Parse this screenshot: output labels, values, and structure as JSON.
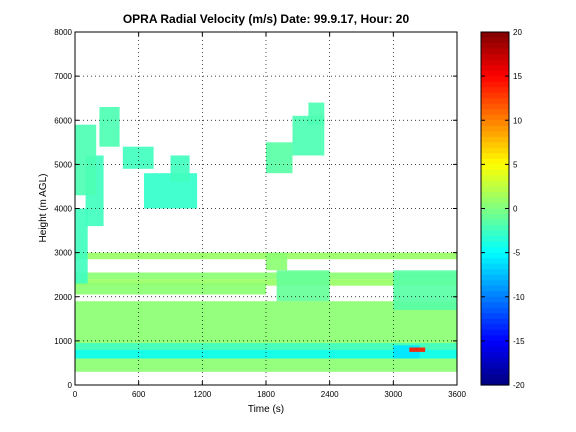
{
  "chart_data": {
    "type": "heatmap",
    "title": "OPRA Radial Velocity (m/s)  Date: 99.9.17, Hour: 20",
    "xlabel": "Time (s)",
    "ylabel": "Height (m AGL)",
    "xlim": [
      0,
      3600
    ],
    "ylim": [
      0,
      8000
    ],
    "x_ticks": [
      "0",
      "600",
      "1200",
      "1800",
      "2400",
      "3000",
      "3600"
    ],
    "y_ticks": [
      "0",
      "1000",
      "2000",
      "3000",
      "4000",
      "5000",
      "6000",
      "7000",
      "8000"
    ],
    "grid": true,
    "colorbar": {
      "range": [
        -20,
        20
      ],
      "ticks": [
        "20",
        "15",
        "10",
        "5",
        "0",
        "-5",
        "-10",
        "-15",
        "-20"
      ],
      "colormap": "jet"
    },
    "regions": [
      {
        "t": [
          0,
          3600
        ],
        "h": [
          300,
          1900
        ],
        "v": 0.5
      },
      {
        "t": [
          0,
          3600
        ],
        "h": [
          600,
          800
        ],
        "v": -4.5
      },
      {
        "t": [
          0,
          3600
        ],
        "h": [
          800,
          950
        ],
        "v": -2.5
      },
      {
        "t": [
          3000,
          3250
        ],
        "h": [
          600,
          900
        ],
        "v": -6
      },
      {
        "t": [
          3150,
          3300
        ],
        "h": [
          750,
          850
        ],
        "v": 14
      },
      {
        "t": [
          0,
          3600
        ],
        "h": [
          2250,
          2400
        ],
        "v": 1
      },
      {
        "t": [
          0,
          1800
        ],
        "h": [
          2050,
          2300
        ],
        "v": 0.5
      },
      {
        "t": [
          0,
          3600
        ],
        "h": [
          2400,
          2550
        ],
        "v": 0.5
      },
      {
        "t": [
          1900,
          2400
        ],
        "h": [
          1900,
          2600
        ],
        "v": -1
      },
      {
        "t": [
          3000,
          3600
        ],
        "h": [
          1700,
          2600
        ],
        "v": -1.5
      },
      {
        "t": [
          0,
          3600
        ],
        "h": [
          2850,
          3000
        ],
        "v": 1
      },
      {
        "t": [
          1800,
          2000
        ],
        "h": [
          2600,
          3000
        ],
        "v": 0.5
      },
      {
        "t": [
          0,
          120
        ],
        "h": [
          2300,
          4000
        ],
        "v": -2.5
      },
      {
        "t": [
          100,
          270
        ],
        "h": [
          3600,
          5200
        ],
        "v": -2.5
      },
      {
        "t": [
          0,
          200
        ],
        "h": [
          4300,
          5900
        ],
        "v": -2
      },
      {
        "t": [
          230,
          420
        ],
        "h": [
          5400,
          6300
        ],
        "v": -2
      },
      {
        "t": [
          450,
          740
        ],
        "h": [
          4900,
          5400
        ],
        "v": -2.5
      },
      {
        "t": [
          650,
          1150
        ],
        "h": [
          4000,
          4800
        ],
        "v": -3
      },
      {
        "t": [
          900,
          1080
        ],
        "h": [
          4600,
          5200
        ],
        "v": -2.5
      },
      {
        "t": [
          1800,
          2050
        ],
        "h": [
          4800,
          5500
        ],
        "v": -1.5
      },
      {
        "t": [
          2050,
          2350
        ],
        "h": [
          5200,
          6100
        ],
        "v": -2
      },
      {
        "t": [
          2200,
          2350
        ],
        "h": [
          5900,
          6400
        ],
        "v": -2
      }
    ]
  }
}
